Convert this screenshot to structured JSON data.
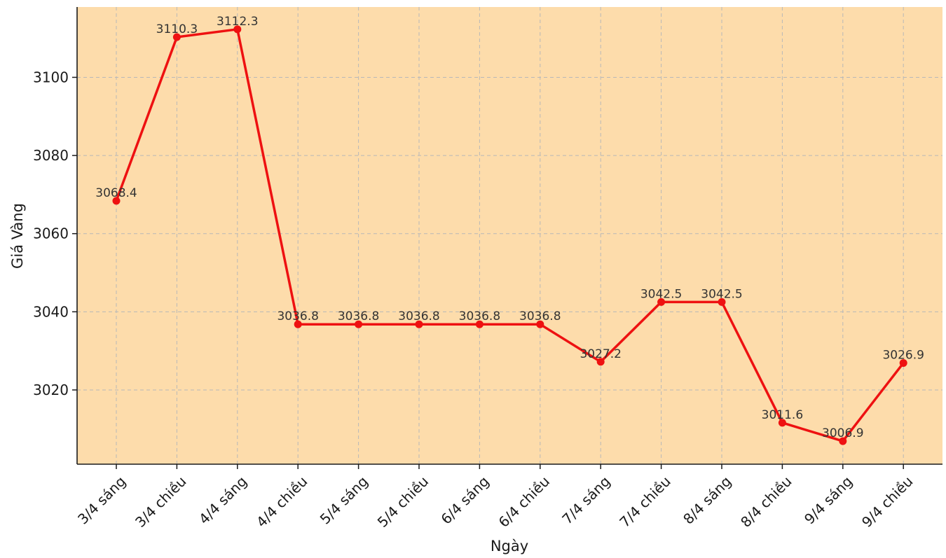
{
  "chart_data": {
    "type": "line",
    "title": "",
    "xlabel": "Ngày",
    "ylabel": "Giá Vàng",
    "categories": [
      "3/4 sáng",
      "3/4 chiều",
      "4/4 sáng",
      "4/4 chiều",
      "5/4 sáng",
      "5/4 chiều",
      "6/4 sáng",
      "6/4 chiều",
      "7/4 sáng",
      "7/4 chiều",
      "8/4 sáng",
      "8/4 chiều",
      "9/4 sáng",
      "9/4 chiều"
    ],
    "values": [
      3068.4,
      3110.3,
      3112.3,
      3036.8,
      3036.8,
      3036.8,
      3036.8,
      3036.8,
      3027.2,
      3042.5,
      3042.5,
      3011.6,
      3006.9,
      3026.9
    ],
    "data_labels": [
      "3068.4",
      "3110.3",
      "3112.3",
      "3036.8",
      "3036.8",
      "3036.8",
      "3036.8",
      "3036.8",
      "3027.2",
      "3042.5",
      "3042.5",
      "3011.6",
      "3006.9",
      "3026.9"
    ],
    "yticks": [
      3020,
      3040,
      3060,
      3080,
      3100
    ],
    "ylim": [
      3001,
      3118
    ],
    "grid": true,
    "legend": "none",
    "colors": {
      "line": "#ee1111",
      "plot_background": "#fddcab",
      "grid": "#b8b8b8",
      "axis": "#1a1a1a"
    }
  }
}
